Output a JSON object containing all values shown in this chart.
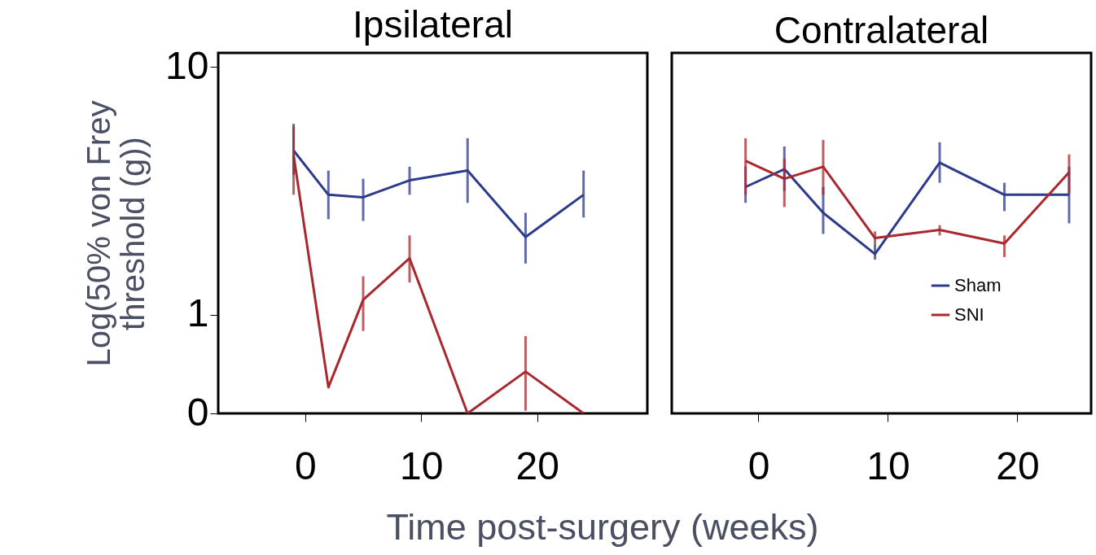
{
  "chart_data": [
    {
      "type": "line",
      "title": "Ipsilateral",
      "xlabel": "Time post-surgery (weeks)",
      "ylabel": "Log(50% von Frey threshold (g))",
      "x": [
        -1,
        2,
        5,
        9,
        14,
        19,
        24
      ],
      "series": [
        {
          "color": "#2e3a8c",
          "values": [
            4.6,
            3.05,
            2.98,
            3.49,
            3.82,
            2.06,
            3.05
          ],
          "errors": [
            [
              3.67,
              5.9
            ],
            [
              2.43,
              3.82
            ],
            [
              2.39,
              3.54
            ],
            [
              3.05,
              3.96
            ],
            [
              2.83,
              5.16
            ],
            [
              1.61,
              2.58
            ],
            [
              2.47,
              3.82
            ]
          ]
        },
        {
          "color": "#a8282e",
          "values": [
            4.4,
            0.51,
            1.15,
            1.69,
            0.4,
            0.59,
            0.4
          ],
          "errors": [
            [
              3.05,
              5.77
            ],
            null,
            [
              0.86,
              1.43
            ],
            [
              1.35,
              2.09
            ],
            null,
            [
              0.41,
              0.82
            ],
            null
          ]
        }
      ],
      "xlim": [
        -7.5,
        29.5
      ],
      "xticks": [
        0,
        10,
        20
      ],
      "ylim": [
        0.4,
        11.4
      ],
      "yticks": [
        {
          "value": 0.4,
          "label": "0"
        },
        1,
        10
      ],
      "log": true,
      "grid": false,
      "marker": "none",
      "line_style": "solid"
    },
    {
      "type": "line",
      "title": "Contralateral",
      "x": [
        -1,
        2,
        5,
        9,
        14,
        19,
        24
      ],
      "series": [
        {
          "name": "Sham",
          "color": "#2e3a8c",
          "values": [
            3.28,
            3.87,
            2.58,
            1.76,
            4.11,
            3.05,
            3.05
          ],
          "errors": [
            [
              2.83,
              3.96
            ],
            [
              3.16,
              4.78
            ],
            [
              2.12,
              3.28
            ],
            [
              1.67,
              1.94
            ],
            [
              3.41,
              4.97
            ],
            [
              2.62,
              3.41
            ],
            [
              2.34,
              3.96
            ]
          ]
        },
        {
          "name": "SNI",
          "color": "#a8282e",
          "values": [
            4.18,
            3.54,
            3.96,
            2.04,
            2.2,
            1.94,
            3.76
          ],
          "errors": [
            [
              3.05,
              5.16
            ],
            [
              2.72,
              4.27
            ],
            [
              3.05,
              5.08
            ],
            [
              1.94,
              2.17
            ],
            [
              2.09,
              2.3
            ],
            [
              1.71,
              2.09
            ],
            [
              3.09,
              4.44
            ]
          ]
        }
      ],
      "xlim": [
        -6.7,
        25.7
      ],
      "xticks": [
        0,
        10,
        20
      ],
      "ylim": [
        0.4,
        11.4
      ],
      "log": true,
      "grid": false,
      "legend": "bottom right",
      "tick_labels": "x",
      "marker": "none",
      "line_style": "solid"
    }
  ]
}
